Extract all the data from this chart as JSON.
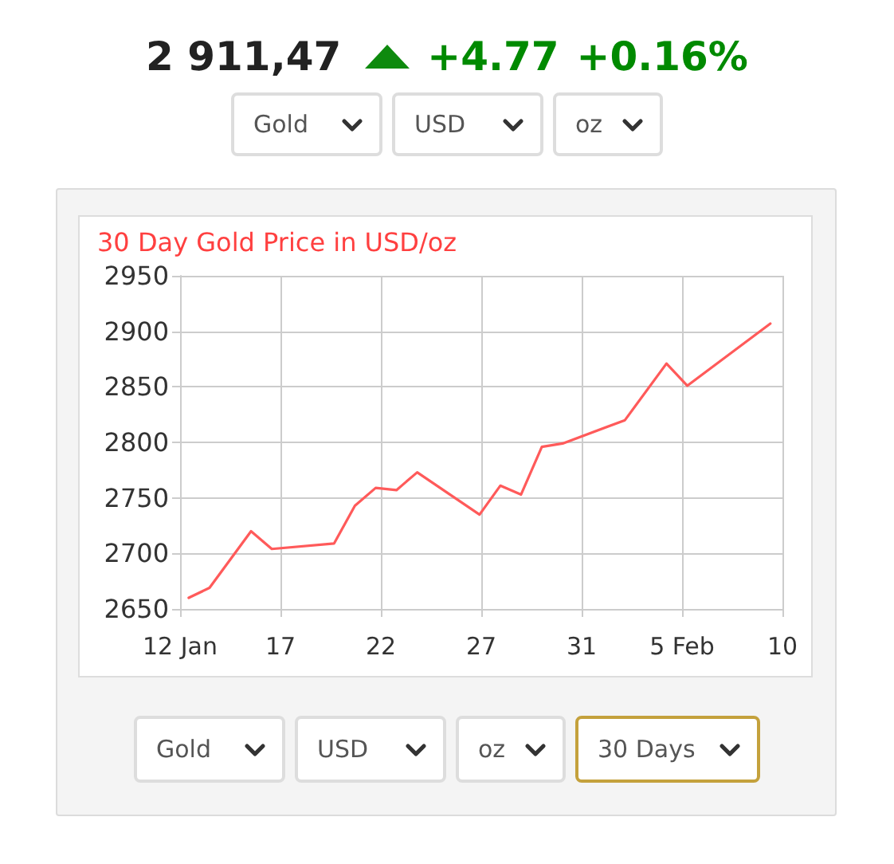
{
  "chart_data": {
    "type": "line",
    "title": "30 Day Gold Price in USD/oz",
    "annotations": [
      "2 911,47",
      "+4.77",
      "+0.16%",
      "Gold",
      "USD",
      "oz",
      "Gold",
      "USD",
      "oz",
      "30 Days"
    ],
    "x": [
      "--01-13",
      "--01-14",
      "--01-16",
      "--01-17",
      "--01-20",
      "--01-21",
      "--01-22",
      "--01-23",
      "--01-24",
      "--01-27",
      "--01-28",
      "--01-29",
      "--01-30",
      "--01-31",
      "--02-03",
      "--02-05",
      "--02-06",
      "--02-10"
    ],
    "values": [
      2660,
      2669,
      2720,
      2704,
      2709,
      2743,
      2759,
      2757,
      2773,
      2735,
      2761,
      2753,
      2796,
      2799,
      2820,
      2871,
      2851,
      2907
    ],
    "color": "#ff5a5a",
    "xlim": [
      "--01-12T14:00",
      "--02-10T14:00"
    ],
    "xticks": [
      {
        "value": "--01-12T14:00",
        "label": "12 Jan"
      },
      {
        "value": "--01-17T10:00",
        "label": "17"
      },
      {
        "value": "--01-22T06:00",
        "label": "22"
      },
      {
        "value": "--01-27T02:00",
        "label": "27"
      },
      {
        "value": "--01-31T22:00",
        "label": "31"
      },
      {
        "value": "--02-05T18:00",
        "label": "5 Feb"
      },
      {
        "value": "--02-10T14:00",
        "label": "10"
      }
    ],
    "ylim": [
      2650,
      2950
    ],
    "yticks": [
      2650,
      2700,
      2750,
      2800,
      2850,
      2900,
      2950
    ],
    "grid": true,
    "marker": "none",
    "line_style": "solid"
  }
}
